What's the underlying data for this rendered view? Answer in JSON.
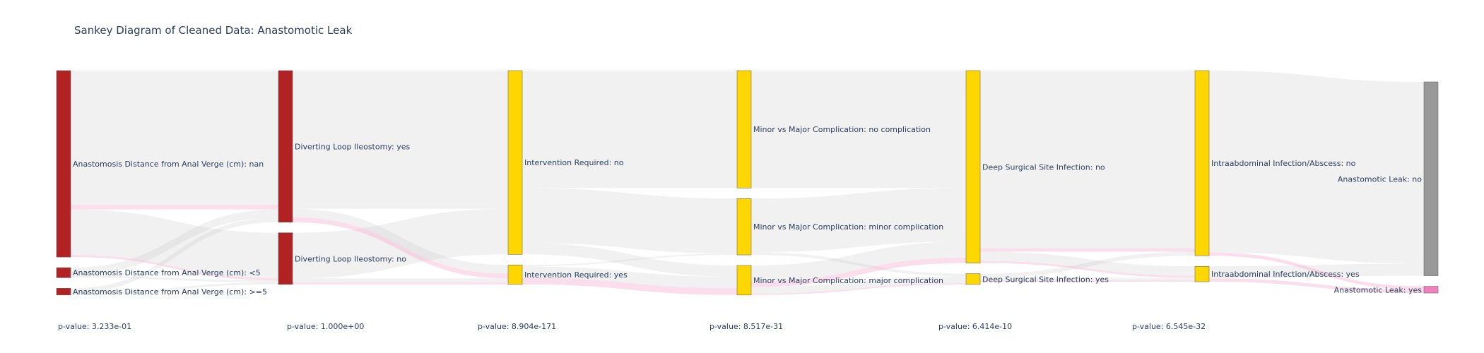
{
  "title": "Sankey Diagram of Cleaned Data: Anastomotic Leak",
  "colors": {
    "red": "#b22222",
    "yellow": "#ffd700",
    "gray": "#999999",
    "pink": "#f080c0",
    "link_gray": "rgba(200,200,200,0.25)",
    "link_pink": "rgba(248,180,210,0.45)",
    "node_border": "#555555"
  },
  "nodes": [
    {
      "id": "asd_nan",
      "label": "Anastomosis Distance from Anal Verge (cm): nan",
      "color": "red",
      "column": 0
    },
    {
      "id": "asd_lt5",
      "label": "Anastomosis Distance from Anal Verge (cm): <5",
      "color": "red",
      "column": 0
    },
    {
      "id": "asd_ge5",
      "label": "Anastomosis Distance from Anal Verge (cm): >=5",
      "color": "red",
      "column": 0
    },
    {
      "id": "dli_yes",
      "label": "Diverting Loop Ileostomy: yes",
      "color": "red",
      "column": 1
    },
    {
      "id": "dli_no",
      "label": "Diverting Loop Ileostomy: no",
      "color": "red",
      "column": 1
    },
    {
      "id": "ir_no",
      "label": "Intervention Required: no",
      "color": "yellow",
      "column": 2
    },
    {
      "id": "ir_yes",
      "label": "Intervention Required: yes",
      "color": "yellow",
      "column": 2
    },
    {
      "id": "mm_none",
      "label": "Minor vs Major Complication: no complication",
      "color": "yellow",
      "column": 3
    },
    {
      "id": "mm_minor",
      "label": "Minor vs Major Complication: minor complication",
      "color": "yellow",
      "column": 3
    },
    {
      "id": "mm_major",
      "label": "Minor vs Major Complication: major complication",
      "color": "yellow",
      "column": 3
    },
    {
      "id": "dssi_no",
      "label": "Deep Surgical Site Infection: no",
      "color": "yellow",
      "column": 4
    },
    {
      "id": "dssi_yes",
      "label": "Deep Surgical Site Infection: yes",
      "color": "yellow",
      "column": 4
    },
    {
      "id": "iia_no",
      "label": "Intraabdominal Infection/Abscess: no",
      "color": "yellow",
      "column": 5
    },
    {
      "id": "iia_yes",
      "label": "Intraabdominal Infection/Abscess: yes",
      "color": "yellow",
      "column": 5
    },
    {
      "id": "al_no",
      "label": "Anastomotic Leak: no",
      "color": "gray",
      "column": 6
    },
    {
      "id": "al_yes",
      "label": "Anastomotic Leak: yes",
      "color": "pink",
      "column": 6
    }
  ],
  "links": [
    {
      "source": "asd_nan",
      "target": "dli_yes",
      "value": 200,
      "leak": false
    },
    {
      "source": "asd_nan",
      "target": "dli_yes",
      "value": 7,
      "leak": true
    },
    {
      "source": "asd_nan",
      "target": "dli_no",
      "value": 68,
      "leak": false
    },
    {
      "source": "asd_nan",
      "target": "dli_no",
      "value": 3,
      "leak": true
    },
    {
      "source": "asd_lt5",
      "target": "dli_yes",
      "value": 12,
      "leak": false
    },
    {
      "source": "asd_lt5",
      "target": "dli_no",
      "value": 3,
      "leak": false
    },
    {
      "source": "asd_ge5",
      "target": "dli_yes",
      "value": 7,
      "leak": false
    },
    {
      "source": "asd_ge5",
      "target": "dli_no",
      "value": 3,
      "leak": false
    },
    {
      "source": "dli_yes",
      "target": "ir_no",
      "value": 206,
      "leak": false
    },
    {
      "source": "dli_yes",
      "target": "ir_yes",
      "value": 13,
      "leak": false
    },
    {
      "source": "dli_yes",
      "target": "ir_yes",
      "value": 7,
      "leak": true
    },
    {
      "source": "dli_no",
      "target": "ir_no",
      "value": 68,
      "leak": false
    },
    {
      "source": "dli_no",
      "target": "ir_yes",
      "value": 6,
      "leak": false
    },
    {
      "source": "dli_no",
      "target": "ir_yes",
      "value": 3,
      "leak": true
    },
    {
      "source": "ir_no",
      "target": "mm_none",
      "value": 175,
      "leak": false
    },
    {
      "source": "ir_no",
      "target": "mm_minor",
      "value": 82,
      "leak": false
    },
    {
      "source": "ir_no",
      "target": "mm_major",
      "value": 17,
      "leak": false
    },
    {
      "source": "ir_yes",
      "target": "mm_minor",
      "value": 2,
      "leak": false
    },
    {
      "source": "ir_yes",
      "target": "mm_major",
      "value": 17,
      "leak": false
    },
    {
      "source": "ir_yes",
      "target": "mm_major",
      "value": 10,
      "leak": true
    },
    {
      "source": "mm_none",
      "target": "dssi_no",
      "value": 175,
      "leak": false
    },
    {
      "source": "mm_minor",
      "target": "dssi_no",
      "value": 80,
      "leak": false
    },
    {
      "source": "mm_minor",
      "target": "dssi_yes",
      "value": 4,
      "leak": false
    },
    {
      "source": "mm_major",
      "target": "dssi_no",
      "value": 24,
      "leak": false
    },
    {
      "source": "mm_major",
      "target": "dssi_yes",
      "value": 10,
      "leak": false
    },
    {
      "source": "mm_major",
      "target": "dssi_no",
      "value": 8,
      "leak": true
    },
    {
      "source": "mm_major",
      "target": "dssi_yes",
      "value": 2,
      "leak": true
    },
    {
      "source": "dssi_no",
      "target": "iia_no",
      "value": 265,
      "leak": false
    },
    {
      "source": "dssi_no",
      "target": "iia_yes",
      "value": 14,
      "leak": false
    },
    {
      "source": "dssi_no",
      "target": "iia_no",
      "value": 5,
      "leak": true
    },
    {
      "source": "dssi_no",
      "target": "iia_yes",
      "value": 3,
      "leak": true
    },
    {
      "source": "dssi_yes",
      "target": "iia_no",
      "value": 6,
      "leak": false
    },
    {
      "source": "dssi_yes",
      "target": "iia_yes",
      "value": 4,
      "leak": false
    },
    {
      "source": "dssi_yes",
      "target": "iia_yes",
      "value": 2,
      "leak": true
    },
    {
      "source": "iia_no",
      "target": "al_no",
      "value": 271,
      "leak": false
    },
    {
      "source": "iia_no",
      "target": "al_yes",
      "value": 5,
      "leak": true
    },
    {
      "source": "iia_yes",
      "target": "al_no",
      "value": 18,
      "leak": false
    },
    {
      "source": "iia_yes",
      "target": "al_yes",
      "value": 5,
      "leak": true
    }
  ],
  "p_values": [
    "p-value: 3.233e-01",
    "p-value: 1.000e+00",
    "p-value: 8.904e-171",
    "p-value: 8.517e-31",
    "p-value: 6.414e-10",
    "p-value: 6.545e-32"
  ]
}
